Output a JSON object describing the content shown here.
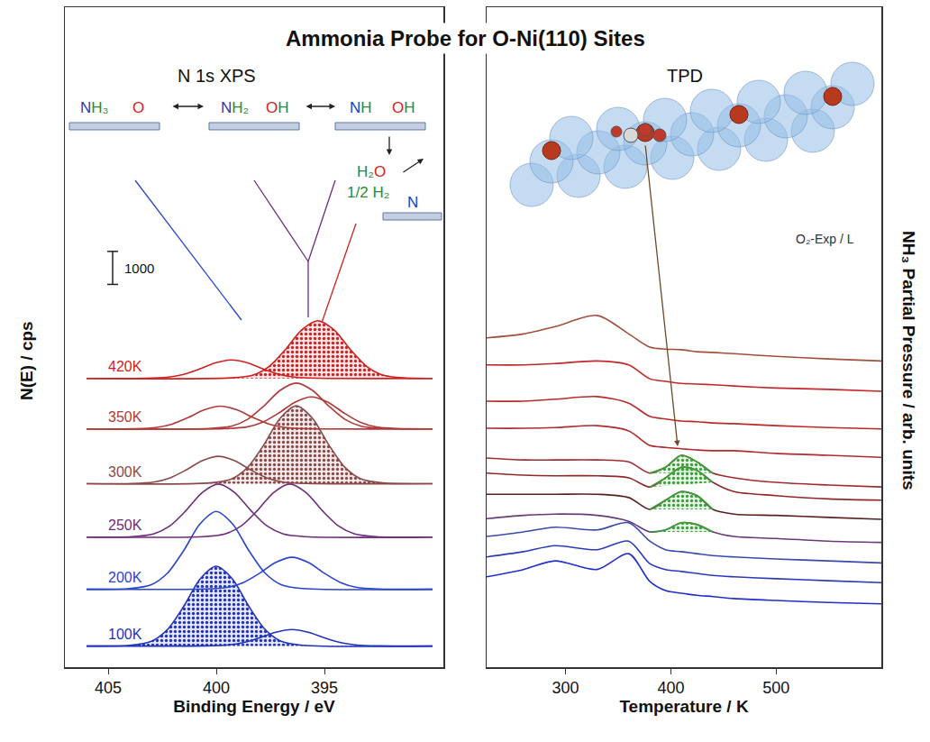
{
  "title": "Ammonia Probe for O-Ni(110) Sites",
  "schematic": {
    "states": [
      [
        "NH₃",
        "O"
      ],
      [
        "NH₂",
        "OH"
      ],
      [
        "NH",
        "OH"
      ]
    ],
    "products": [
      "H₂O",
      "1/2 H₂",
      "N"
    ]
  },
  "chart_data": [
    {
      "type": "line",
      "title": "N 1s XPS",
      "x_label": "Binding Energy / eV",
      "y_label": "N(E) / cps",
      "xlim": [
        407,
        389.5
      ],
      "xticks": [
        405,
        400,
        395
      ],
      "ylim": [
        0,
        20000
      ],
      "tick_labels": "x",
      "scale_bar": 1000,
      "spectra": [
        {
          "name": "100K",
          "color": "#2233bb",
          "components": [
            {
              "type": "area",
              "x": [
                406,
                404,
                403,
                402.25,
                401.5,
                400.75,
                400,
                399.25,
                398.5,
                397.75,
                397,
                396,
                390
              ],
              "values": [
                640,
                664,
                785,
                1148,
                1850,
                2673,
                3060,
                2673,
                1850,
                1148,
                785,
                664,
                640
              ]
            },
            {
              "type": "line",
              "x": [
                406,
                400.5,
                399.5,
                398.75,
                398,
                397.25,
                396.5,
                395.75,
                395,
                394.25,
                393.5,
                392.5,
                390
              ],
              "values": [
                640,
                645,
                670,
                745,
                890,
                1060,
                1140,
                1060,
                890,
                745,
                670,
                645,
                640
              ]
            }
          ]
        },
        {
          "name": "200K",
          "color": "#2a44cc",
          "components": [
            {
              "type": "line",
              "x": [
                406,
                404,
                403,
                402.25,
                401.5,
                400.75,
                400,
                399.25,
                398.5,
                397.75,
                397,
                396,
                390
              ],
              "values": [
                2360,
                2384,
                2502,
                2856,
                3540,
                4342,
                4720,
                4342,
                3540,
                2856,
                2502,
                2384,
                2360
              ]
            },
            {
              "type": "line",
              "x": [
                406,
                400.5,
                399.5,
                398.75,
                398,
                397.25,
                396.5,
                395.75,
                395,
                394.25,
                393.5,
                392.5,
                390
              ],
              "values": [
                2360,
                2370,
                2418,
                2564,
                2845,
                3175,
                3330,
                3175,
                2845,
                2564,
                2418,
                2370,
                2360
              ]
            }
          ]
        },
        {
          "name": "250K",
          "color": "#6b2d7a",
          "components": [
            {
              "type": "line",
              "x": [
                406,
                403.9,
                402.9,
                402.15,
                401.4,
                400.65,
                399.9,
                399.15,
                398.4,
                397.65,
                396.9,
                395.9,
                390
              ],
              "values": [
                3940,
                3956,
                4037,
                4278,
                4745,
                5292,
                5550,
                5292,
                4745,
                4278,
                4037,
                3956,
                3940
              ]
            },
            {
              "type": "line",
              "x": [
                406,
                400.6,
                399.6,
                398.85,
                398.1,
                397.35,
                396.6,
                395.85,
                395.1,
                394.35,
                393.6,
                392.6,
                390
              ],
              "values": [
                3940,
                3956,
                4037,
                4278,
                4745,
                5292,
                5550,
                5292,
                4745,
                4278,
                4037,
                3956,
                3940
              ]
            }
          ]
        },
        {
          "name": "300K",
          "color": "#8a4a4a",
          "components": [
            {
              "type": "line",
              "x": [
                406,
                403.9,
                402.9,
                402.15,
                401.4,
                400.65,
                399.9,
                399.15,
                398.4,
                397.65,
                396.9,
                395.9,
                390
              ],
              "values": [
                5560,
                5568,
                5610,
                5734,
                5975,
                6257,
                6390,
                6257,
                5975,
                5734,
                5610,
                5568,
                5560
              ]
            },
            {
              "type": "area",
              "x": [
                406,
                400.3,
                399.3,
                398.55,
                397.8,
                397.05,
                396.3,
                395.55,
                394.8,
                394.05,
                393.3,
                392.3,
                390
              ],
              "values": [
                5560,
                5584,
                5702,
                6056,
                6740,
                7542,
                7920,
                7542,
                6740,
                6056,
                5702,
                5584,
                5560
              ]
            }
          ]
        },
        {
          "name": "350K",
          "color": "#b03a3a",
          "components": [
            {
              "type": "line",
              "x": [
                406,
                403.8,
                402.8,
                402.05,
                401.3,
                400.55,
                399.8,
                399.05,
                398.3,
                397.55,
                396.8,
                395.8,
                390
              ],
              "values": [
                7220,
                7227,
                7261,
                7365,
                7565,
                7800,
                7910,
                7800,
                7565,
                7365,
                7261,
                7227,
                7220
              ]
            },
            {
              "type": "line",
              "x": [
                406,
                400.3,
                399.3,
                398.55,
                397.8,
                397.05,
                396.3,
                395.55,
                394.8,
                394.05,
                393.3,
                392.3,
                390
              ],
              "values": [
                7220,
                7234,
                7303,
                7512,
                7915,
                8388,
                8610,
                8388,
                7915,
                7512,
                7303,
                7234,
                7220
              ]
            },
            {
              "type": "line",
              "x": [
                406,
                399.6,
                398.6,
                397.85,
                397.1,
                396.35,
                395.6,
                394.85,
                394.1,
                393.35,
                392.6,
                391.6,
                390
              ],
              "values": [
                7220,
                7230,
                7278,
                7424,
                7705,
                8035,
                8190,
                8035,
                7705,
                7424,
                7278,
                7230,
                7220
              ]
            }
          ]
        },
        {
          "name": "420K",
          "color": "#cc2222",
          "components": [
            {
              "type": "line",
              "x": [
                406,
                403.3,
                402.3,
                401.55,
                400.8,
                400.05,
                399.3,
                398.55,
                397.8,
                397.05,
                396.3,
                395.3,
                390
              ],
              "values": [
                8750,
                8756,
                8784,
                8868,
                9030,
                9220,
                9310,
                9220,
                9030,
                8868,
                8784,
                8756,
                8750
              ]
            },
            {
              "type": "area",
              "x": [
                406,
                399.3,
                398.3,
                397.55,
                396.8,
                396.05,
                395.3,
                394.55,
                393.8,
                393.05,
                392.3,
                391.3,
                390
              ],
              "values": [
                8750,
                8768,
                8855,
                9118,
                9625,
                10220,
                10500,
                10220,
                9625,
                9118,
                8855,
                8768,
                8750
              ]
            }
          ]
        }
      ]
    },
    {
      "type": "line",
      "title": "TPD",
      "x_label": "Temperature / K",
      "y_label": "NH₃ Partial Pressure / arb. units",
      "xlim": [
        225,
        600
      ],
      "xticks": [
        300,
        400,
        500
      ],
      "ylim": [
        0,
        100
      ],
      "tick_labels": "x",
      "annotations": [
        "O₂-Exp / L"
      ],
      "x": [
        225,
        260,
        290,
        330,
        360,
        380,
        395,
        410,
        425,
        440,
        460,
        500,
        550,
        600
      ],
      "series": [
        {
          "type": "line",
          "color": "#a0503a",
          "values": [
            49.9,
            50.5,
            51.6,
            53.3,
            50.5,
            48.5,
            48.2,
            48.1,
            47.8,
            47.7,
            47.5,
            47.1,
            46.7,
            46.4
          ]
        },
        {
          "type": "line",
          "color": "#c0282a",
          "values": [
            45.8,
            45.8,
            46.0,
            46.4,
            45.8,
            43.7,
            43.3,
            43.0,
            42.9,
            42.8,
            42.6,
            42.3,
            42.1,
            41.8
          ]
        },
        {
          "type": "line",
          "color": "#b82a2a",
          "values": [
            40.3,
            40.3,
            40.6,
            41.0,
            40.0,
            38.0,
            37.6,
            37.3,
            37.2,
            37.0,
            36.9,
            36.6,
            36.3,
            36.1
          ]
        },
        {
          "type": "line",
          "color": "#b02a30",
          "values": [
            36.2,
            36.2,
            36.3,
            36.6,
            35.8,
            33.6,
            33.3,
            33.1,
            32.9,
            32.8,
            32.8,
            32.4,
            32.1,
            31.8
          ]
        },
        {
          "type": "line",
          "color": "#a02a30",
          "values": [
            31.7,
            31.4,
            31.4,
            31.4,
            31.1,
            29.4,
            30.3,
            32.1,
            31.1,
            29.4,
            28.7,
            28.0,
            27.6,
            27.3
          ]
        },
        {
          "type": "line",
          "color": "#902a2a",
          "values": [
            29.4,
            29.1,
            29.0,
            29.0,
            28.7,
            27.3,
            28.7,
            30.3,
            29.8,
            28.0,
            26.6,
            26.0,
            25.5,
            25.3
          ]
        },
        {
          "type": "line",
          "color": "#5a2020",
          "values": [
            26.2,
            26.2,
            26.2,
            26.2,
            25.7,
            23.9,
            25.3,
            26.6,
            26.0,
            23.9,
            23.2,
            23.0,
            22.7,
            22.4
          ]
        },
        {
          "type": "line",
          "color": "#6a3a7a",
          "values": [
            22.5,
            23.0,
            23.2,
            23.0,
            22.1,
            20.5,
            20.8,
            21.9,
            21.6,
            20.5,
            19.8,
            19.5,
            19.1,
            18.9
          ]
        },
        {
          "type": "line",
          "color": "#3a4aaa",
          "values": [
            19.8,
            20.5,
            21.2,
            20.8,
            21.9,
            19.1,
            17.8,
            17.5,
            17.2,
            16.9,
            16.7,
            16.4,
            16.1,
            15.8
          ]
        },
        {
          "type": "line",
          "color": "#2a3ab8",
          "values": [
            16.7,
            17.5,
            18.4,
            17.8,
            19.1,
            15.7,
            14.8,
            14.5,
            14.2,
            13.9,
            13.7,
            13.4,
            13.1,
            12.8
          ]
        },
        {
          "type": "line",
          "color": "#2030c8",
          "values": [
            13.7,
            14.8,
            16.1,
            14.8,
            17.2,
            13.0,
            11.6,
            11.2,
            10.9,
            10.7,
            10.4,
            10.1,
            9.8,
            9.6
          ]
        },
        {
          "type": "area",
          "color": "#3aa03a",
          "x": [
            380,
            395,
            410,
            425,
            440
          ],
          "values": [
            29.4,
            30.3,
            32.1,
            31.1,
            29.4
          ]
        },
        {
          "type": "area",
          "color": "#3aa03a",
          "x": [
            380,
            395,
            410,
            425,
            440
          ],
          "values": [
            27.3,
            28.7,
            30.3,
            29.8,
            28.0
          ]
        },
        {
          "type": "area",
          "color": "#3aa03a",
          "x": [
            380,
            395,
            410,
            425,
            440
          ],
          "values": [
            23.9,
            25.3,
            26.6,
            26.0,
            23.9
          ]
        },
        {
          "type": "area",
          "color": "#3aa03a",
          "x": [
            380,
            395,
            410,
            425,
            440
          ],
          "values": [
            20.5,
            20.8,
            21.9,
            21.6,
            20.5
          ]
        }
      ]
    }
  ]
}
